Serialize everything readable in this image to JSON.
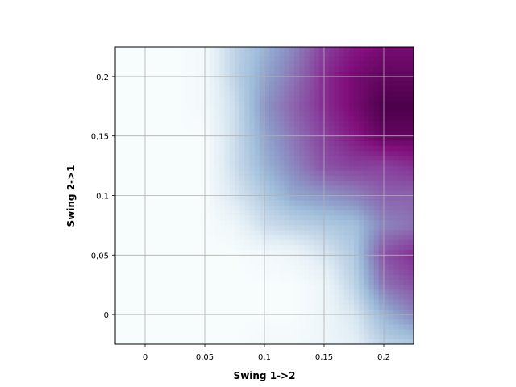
{
  "chart_data": {
    "type": "heatmap",
    "title": "",
    "xlabel": "Swing 1->2",
    "ylabel": "Swing 2->1",
    "xlim": [
      -0.025,
      0.225
    ],
    "ylim": [
      -0.025,
      0.225
    ],
    "x_ticks": [
      0,
      0.05,
      0.1,
      0.15,
      0.2
    ],
    "x_tick_labels": [
      "0",
      "0,05",
      "0,1",
      "0,15",
      "0,2"
    ],
    "y_ticks": [
      0,
      0.05,
      0.1,
      0.15,
      0.2
    ],
    "y_tick_labels": [
      "0",
      "0,05",
      "0,1",
      "0,15",
      "0,2"
    ],
    "grid": true,
    "colormap": [
      "#f7fcfd",
      "#e0ecf4",
      "#bfd3e6",
      "#9ebcda",
      "#8c96c6",
      "#8c6bb1",
      "#88419d",
      "#810f7c",
      "#4d004b"
    ],
    "color_range": [
      0,
      1
    ],
    "x": [
      -0.025,
      0,
      0.025,
      0.05,
      0.075,
      0.1,
      0.125,
      0.15,
      0.175,
      0.2,
      0.225
    ],
    "y": [
      -0.025,
      0,
      0.025,
      0.05,
      0.075,
      0.1,
      0.125,
      0.15,
      0.175,
      0.2,
      0.225
    ],
    "z": [
      [
        0.0,
        0.0,
        0.0,
        0.0,
        0.0,
        0.02,
        0.02,
        0.05,
        0.1,
        0.25,
        0.3
      ],
      [
        0.0,
        0.0,
        0.0,
        0.0,
        0.0,
        0.0,
        0.0,
        0.05,
        0.15,
        0.4,
        0.55
      ],
      [
        0.0,
        0.0,
        0.0,
        0.0,
        0.0,
        0.0,
        0.0,
        0.05,
        0.25,
        0.6,
        0.7
      ],
      [
        0.0,
        0.0,
        0.0,
        0.0,
        0.0,
        0.02,
        0.05,
        0.15,
        0.3,
        0.7,
        0.8
      ],
      [
        0.0,
        0.0,
        0.0,
        0.0,
        0.05,
        0.2,
        0.25,
        0.3,
        0.35,
        0.55,
        0.6
      ],
      [
        0.0,
        0.0,
        0.0,
        0.0,
        0.15,
        0.3,
        0.45,
        0.5,
        0.55,
        0.65,
        0.65
      ],
      [
        0.0,
        0.0,
        0.0,
        0.0,
        0.2,
        0.4,
        0.55,
        0.7,
        0.75,
        0.75,
        0.8
      ],
      [
        0.0,
        0.0,
        0.0,
        0.0,
        0.2,
        0.45,
        0.6,
        0.75,
        0.85,
        0.95,
        0.95
      ],
      [
        0.0,
        0.0,
        0.0,
        0.02,
        0.2,
        0.5,
        0.65,
        0.8,
        0.9,
        1.0,
        1.0
      ],
      [
        0.0,
        0.0,
        0.0,
        0.02,
        0.25,
        0.45,
        0.6,
        0.8,
        0.9,
        0.95,
        0.95
      ],
      [
        0.0,
        0.0,
        0.0,
        0.02,
        0.25,
        0.4,
        0.55,
        0.75,
        0.85,
        0.9,
        0.9
      ]
    ]
  }
}
